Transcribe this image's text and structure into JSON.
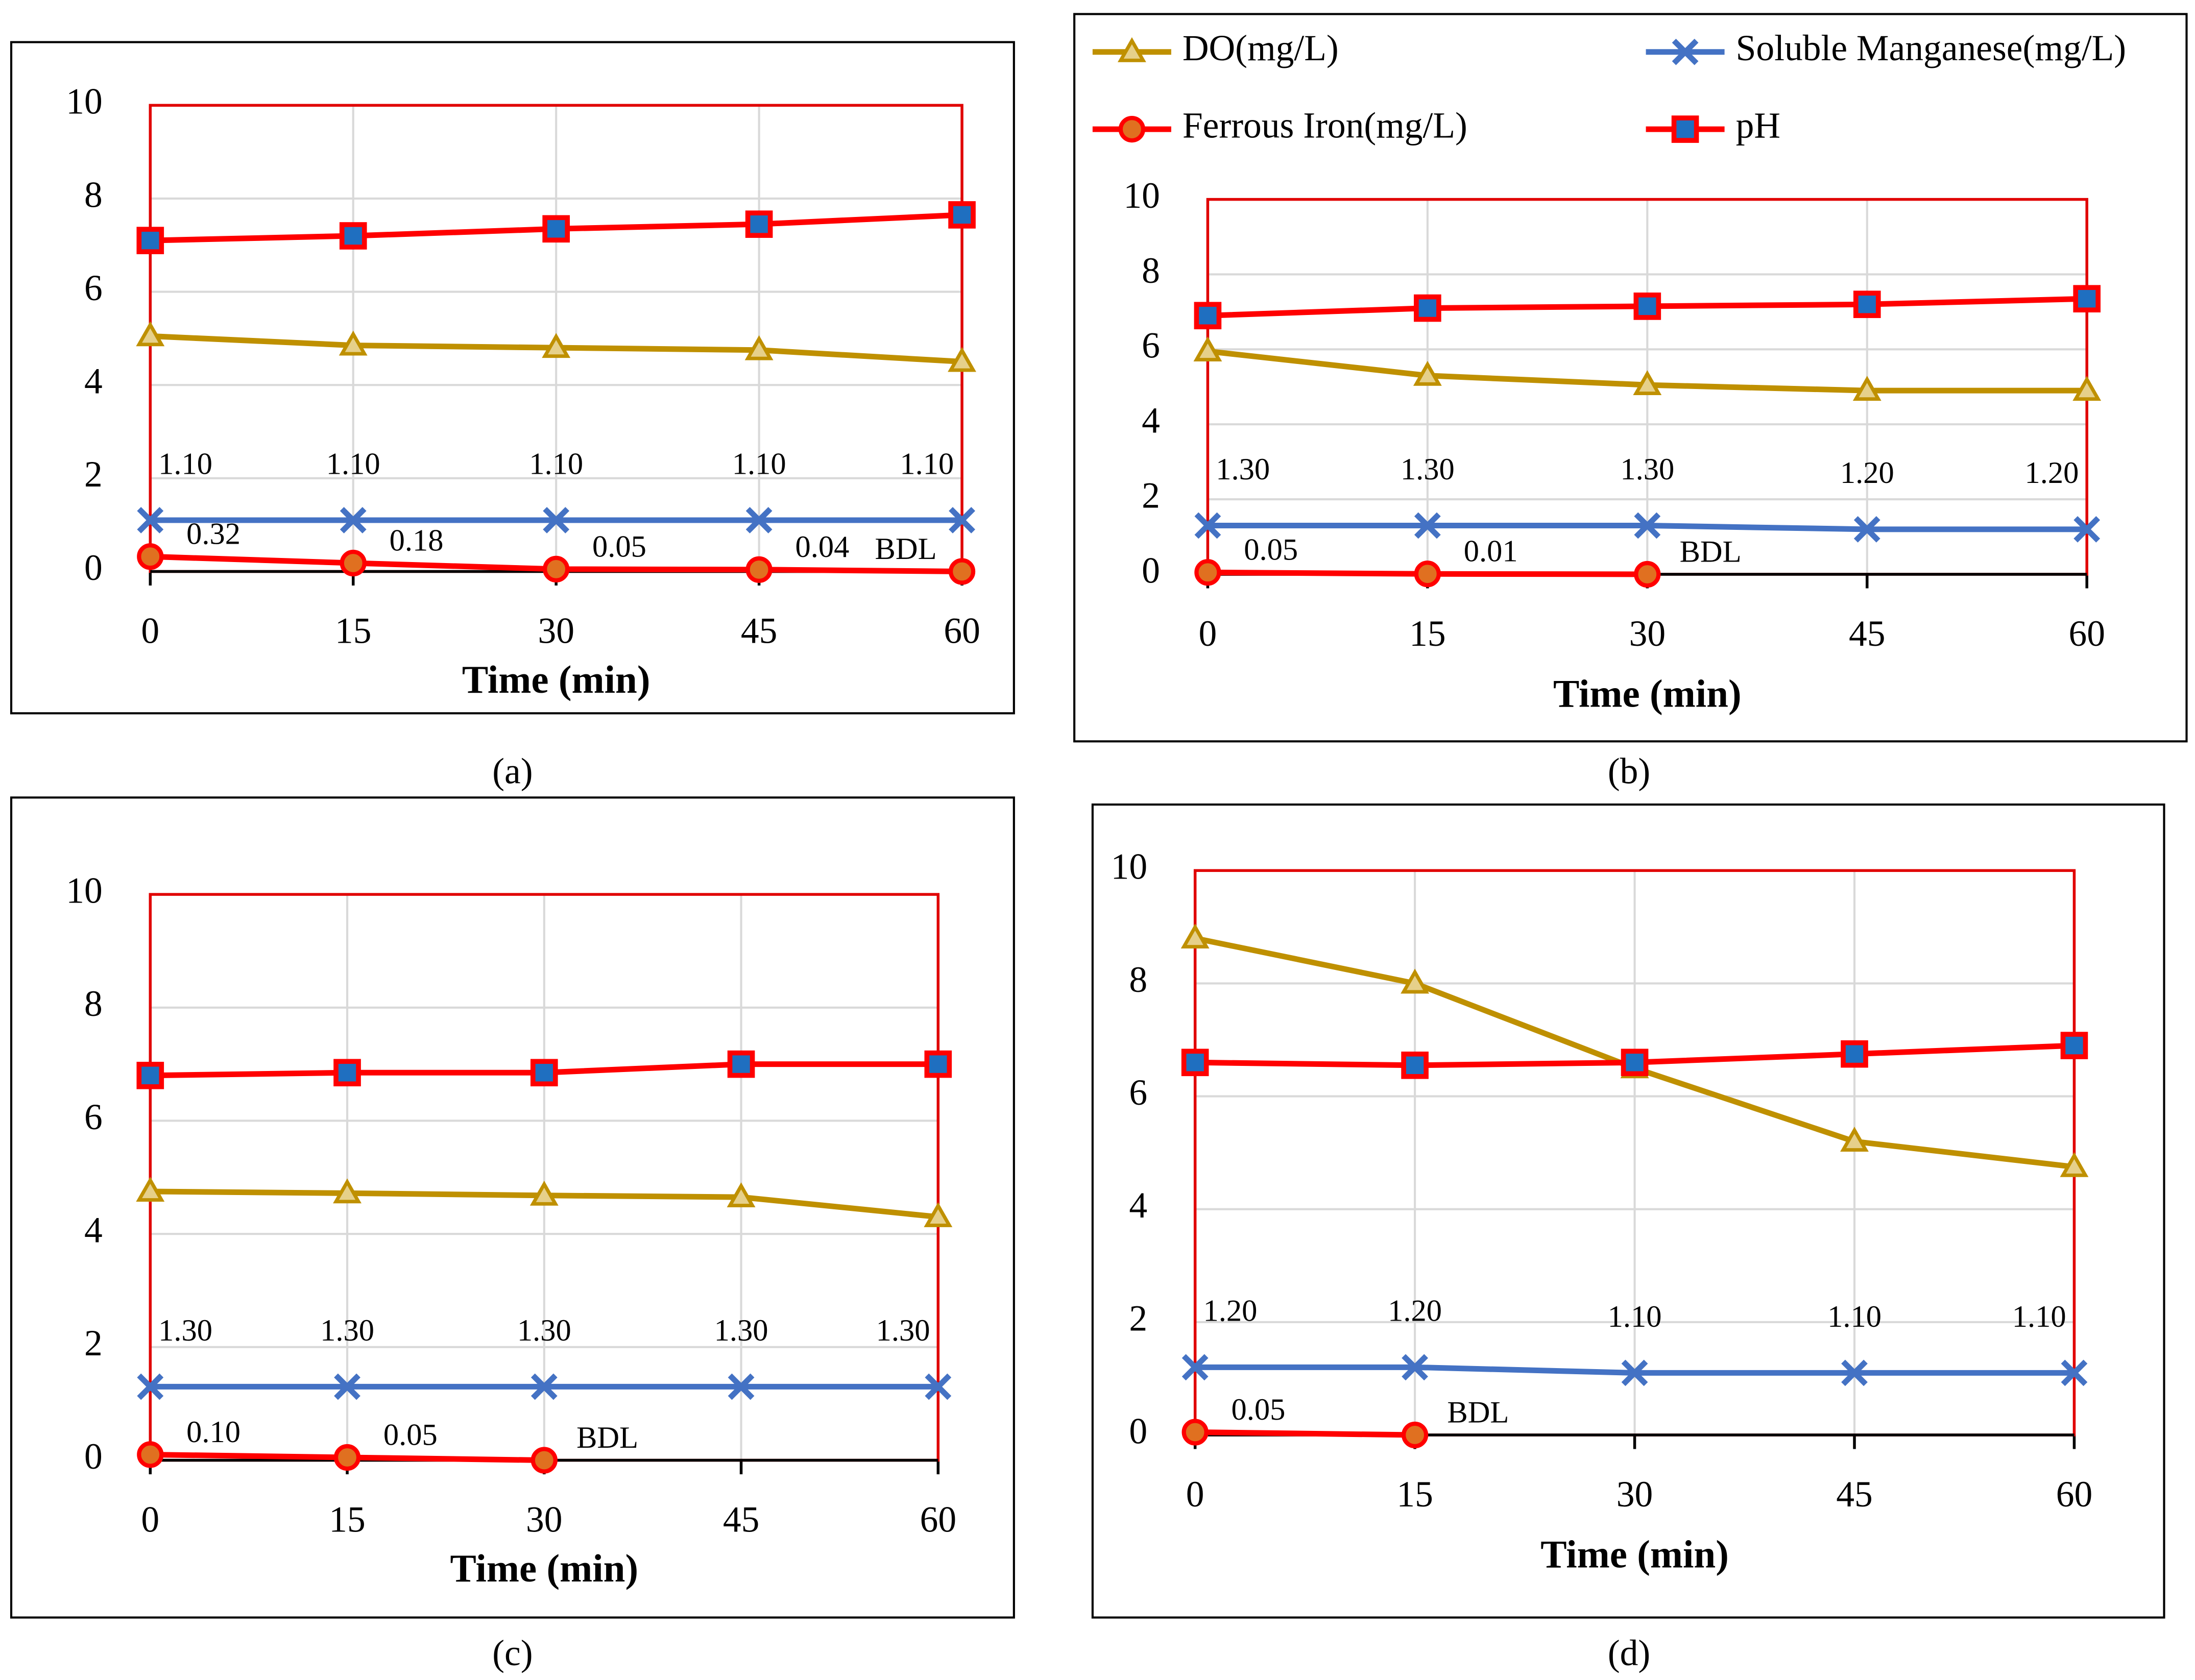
{
  "chart_data": [
    {
      "type": "line",
      "caption": "(a)",
      "xlabel": "Time (min)",
      "x": [
        0,
        15,
        30,
        45,
        60
      ],
      "xlim": [
        0,
        60
      ],
      "xticks": [
        0,
        15,
        30,
        45,
        60
      ],
      "ylim": [
        0,
        10
      ],
      "yticks": [
        0,
        2,
        4,
        6,
        8,
        10
      ],
      "grid": true,
      "series": [
        {
          "color": "#bf9000",
          "marker": "triangle",
          "values": [
            5.05,
            4.85,
            4.8,
            4.75,
            4.5
          ]
        },
        {
          "color": "#4472c4",
          "marker": "x",
          "values": [
            1.1,
            1.1,
            1.1,
            1.1,
            1.1
          ],
          "value_labels": [
            "1.10",
            "1.10",
            "1.10",
            "1.10",
            "1.10"
          ]
        },
        {
          "color": "#ff0000",
          "marker": "circle",
          "values": [
            0.32,
            0.18,
            0.05,
            0.04,
            0
          ],
          "value_labels": [
            "0.32",
            "0.18",
            "0.05",
            "0.04",
            "BDL"
          ]
        },
        {
          "color": "#ff0000",
          "marker": "square",
          "values": [
            7.1,
            7.2,
            7.35,
            7.45,
            7.65
          ]
        }
      ]
    },
    {
      "type": "line",
      "caption": "(b)",
      "xlabel": "Time (min)",
      "x": [
        0,
        15,
        30,
        45,
        60
      ],
      "xlim": [
        0,
        60
      ],
      "xticks": [
        0,
        15,
        30,
        45,
        60
      ],
      "ylim": [
        0,
        10
      ],
      "yticks": [
        0,
        2,
        4,
        6,
        8,
        10
      ],
      "grid": true,
      "legend": "top",
      "series": [
        {
          "name": "DO(mg/L)",
          "color": "#bf9000",
          "marker": "triangle",
          "values": [
            5.95,
            5.3,
            5.05,
            4.9,
            4.9
          ]
        },
        {
          "name": "Soluble Manganese(mg/L)",
          "color": "#4472c4",
          "marker": "x",
          "values": [
            1.3,
            1.3,
            1.3,
            1.2,
            1.2
          ],
          "value_labels": [
            "1.30",
            "1.30",
            "1.30",
            "1.20",
            "1.20"
          ]
        },
        {
          "name": "Ferrous Iron(mg/L)",
          "color": "#ff0000",
          "marker": "circle",
          "values": [
            0.05,
            0.01,
            0,
            null,
            null
          ],
          "value_labels": [
            "0.05",
            "0.01",
            "BDL",
            null,
            null
          ]
        },
        {
          "name": "pH",
          "color": "#ff0000",
          "marker": "square",
          "values": [
            6.9,
            7.1,
            7.15,
            7.2,
            7.35
          ]
        }
      ]
    },
    {
      "type": "line",
      "caption": "(c)",
      "xlabel": "Time (min)",
      "x": [
        0,
        15,
        30,
        45,
        60
      ],
      "xlim": [
        0,
        60
      ],
      "xticks": [
        0,
        15,
        30,
        45,
        60
      ],
      "ylim": [
        0,
        10
      ],
      "yticks": [
        0,
        2,
        4,
        6,
        8,
        10
      ],
      "grid": true,
      "series": [
        {
          "color": "#bf9000",
          "marker": "triangle",
          "values": [
            4.75,
            4.72,
            4.68,
            4.65,
            4.3
          ]
        },
        {
          "color": "#4472c4",
          "marker": "x",
          "values": [
            1.3,
            1.3,
            1.3,
            1.3,
            1.3
          ],
          "value_labels": [
            "1.30",
            "1.30",
            "1.30",
            "1.30",
            "1.30"
          ]
        },
        {
          "color": "#ff0000",
          "marker": "circle",
          "values": [
            0.1,
            0.05,
            0,
            null,
            null
          ],
          "value_labels": [
            "0.10",
            "0.05",
            "BDL",
            null,
            null
          ]
        },
        {
          "color": "#ff0000",
          "marker": "square",
          "values": [
            6.8,
            6.85,
            6.85,
            7.0,
            7.0
          ]
        }
      ]
    },
    {
      "type": "line",
      "caption": "(d)",
      "xlabel": "Time (min)",
      "x": [
        0,
        15,
        30,
        45,
        60
      ],
      "xlim": [
        0,
        60
      ],
      "xticks": [
        0,
        15,
        30,
        45,
        60
      ],
      "ylim": [
        0,
        10
      ],
      "yticks": [
        0,
        2,
        4,
        6,
        8,
        10
      ],
      "grid": true,
      "series": [
        {
          "color": "#bf9000",
          "marker": "triangle",
          "values": [
            8.8,
            8.0,
            6.5,
            5.2,
            4.75
          ]
        },
        {
          "color": "#4472c4",
          "marker": "x",
          "values": [
            1.2,
            1.2,
            1.1,
            1.1,
            1.1
          ],
          "value_labels": [
            "1.20",
            "1.20",
            "1.10",
            "1.10",
            "1.10"
          ]
        },
        {
          "color": "#ff0000",
          "marker": "circle",
          "values": [
            0.05,
            0,
            null,
            null,
            null
          ],
          "value_labels": [
            "0.05",
            "BDL",
            null,
            null,
            null
          ]
        },
        {
          "color": "#ff0000",
          "marker": "square",
          "values": [
            6.6,
            6.55,
            6.6,
            6.75,
            6.9
          ]
        }
      ]
    }
  ]
}
